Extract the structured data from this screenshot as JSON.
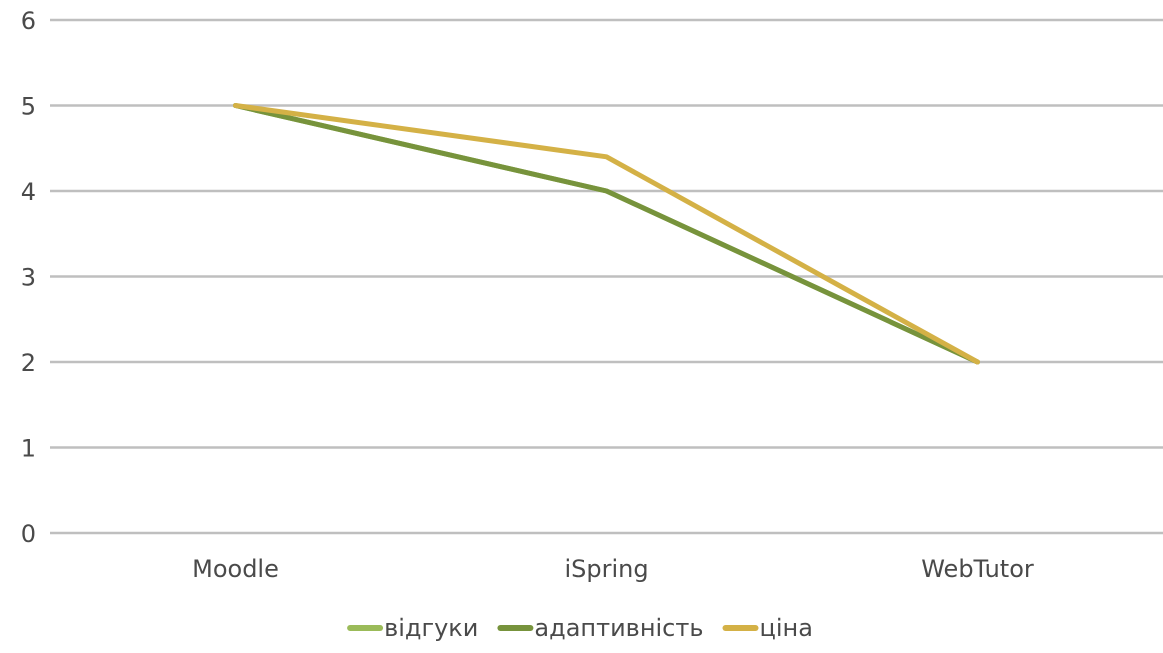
{
  "chart_data": {
    "type": "line",
    "categories": [
      "Moodle",
      "iSpring",
      "WebTutor"
    ],
    "series": [
      {
        "name": "відгуки",
        "values": [
          5,
          4,
          2
        ],
        "color": "#9bbb59"
      },
      {
        "name": "адаптивність",
        "values": [
          5,
          4,
          2
        ],
        "color": "#77933c"
      },
      {
        "name": "ціна",
        "values": [
          5,
          4.4,
          2
        ],
        "color": "#d4b146"
      }
    ],
    "ylim": [
      0,
      6
    ],
    "yticks": [
      0,
      1,
      2,
      3,
      4,
      5,
      6
    ],
    "grid": true,
    "gridline_color": "#bfbfbf",
    "legend_position": "bottom",
    "title": "",
    "xlabel": "",
    "ylabel": ""
  }
}
